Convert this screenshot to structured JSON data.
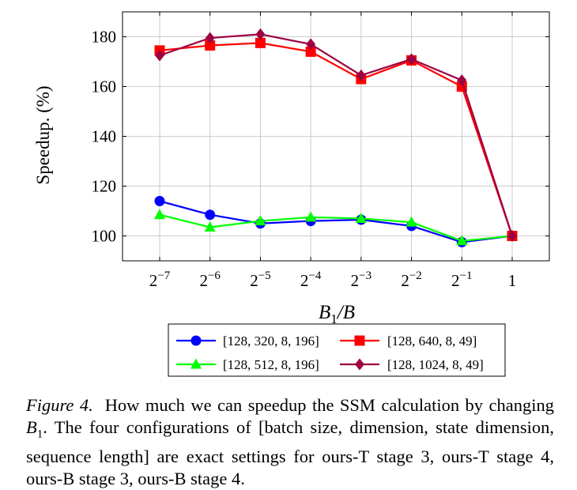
{
  "chart_data": {
    "type": "line",
    "title": "",
    "ylabel": "Speedup. (%)",
    "xlabel": "B1/B",
    "categories": [
      "2^-7",
      "2^-6",
      "2^-5",
      "2^-4",
      "2^-3",
      "2^-2",
      "2^-1",
      "1"
    ],
    "x_tick_labels": [
      {
        "base": "2",
        "exp": "−7"
      },
      {
        "base": "2",
        "exp": "−6"
      },
      {
        "base": "2",
        "exp": "−5"
      },
      {
        "base": "2",
        "exp": "−4"
      },
      {
        "base": "2",
        "exp": "−3"
      },
      {
        "base": "2",
        "exp": "−2"
      },
      {
        "base": "2",
        "exp": "−1"
      },
      {
        "base": "1",
        "exp": ""
      }
    ],
    "ylim": [
      90,
      190
    ],
    "y_ticks": [
      100,
      120,
      140,
      160,
      180
    ],
    "grid": true,
    "legend_position": "bottom",
    "series": [
      {
        "name": "[128, 320, 8, 196]",
        "color": "#0000ff",
        "marker": "circle",
        "values": [
          114,
          108.5,
          105,
          106,
          106.5,
          104,
          97.5,
          100
        ]
      },
      {
        "name": "[128, 640, 8, 49]",
        "color": "#ff0000",
        "marker": "square",
        "values": [
          174.5,
          176.5,
          177.5,
          174,
          163,
          170.5,
          160,
          100
        ]
      },
      {
        "name": "[128, 512, 8, 196]",
        "color": "#00ff00",
        "marker": "triangle",
        "values": [
          108.5,
          103.5,
          106,
          107.5,
          107,
          105.5,
          98,
          100
        ]
      },
      {
        "name": "[128, 1024, 8, 49]",
        "color": "#9e0042",
        "marker": "diamond",
        "values": [
          172.5,
          179.5,
          181,
          177,
          164.5,
          171,
          162.5,
          100
        ]
      }
    ]
  },
  "caption": {
    "figure_label": "Figure 4.",
    "text_before": "How much we can speedup the SSM calculation by changing ",
    "math_base": "B",
    "math_sub": "1",
    "text_after": ". The four configurations of [batch size, dimension, state dimension, sequence length] are exact settings for ours-T stage 3, ours-T stage 4, ours-B stage 3, ours-B stage 4."
  }
}
